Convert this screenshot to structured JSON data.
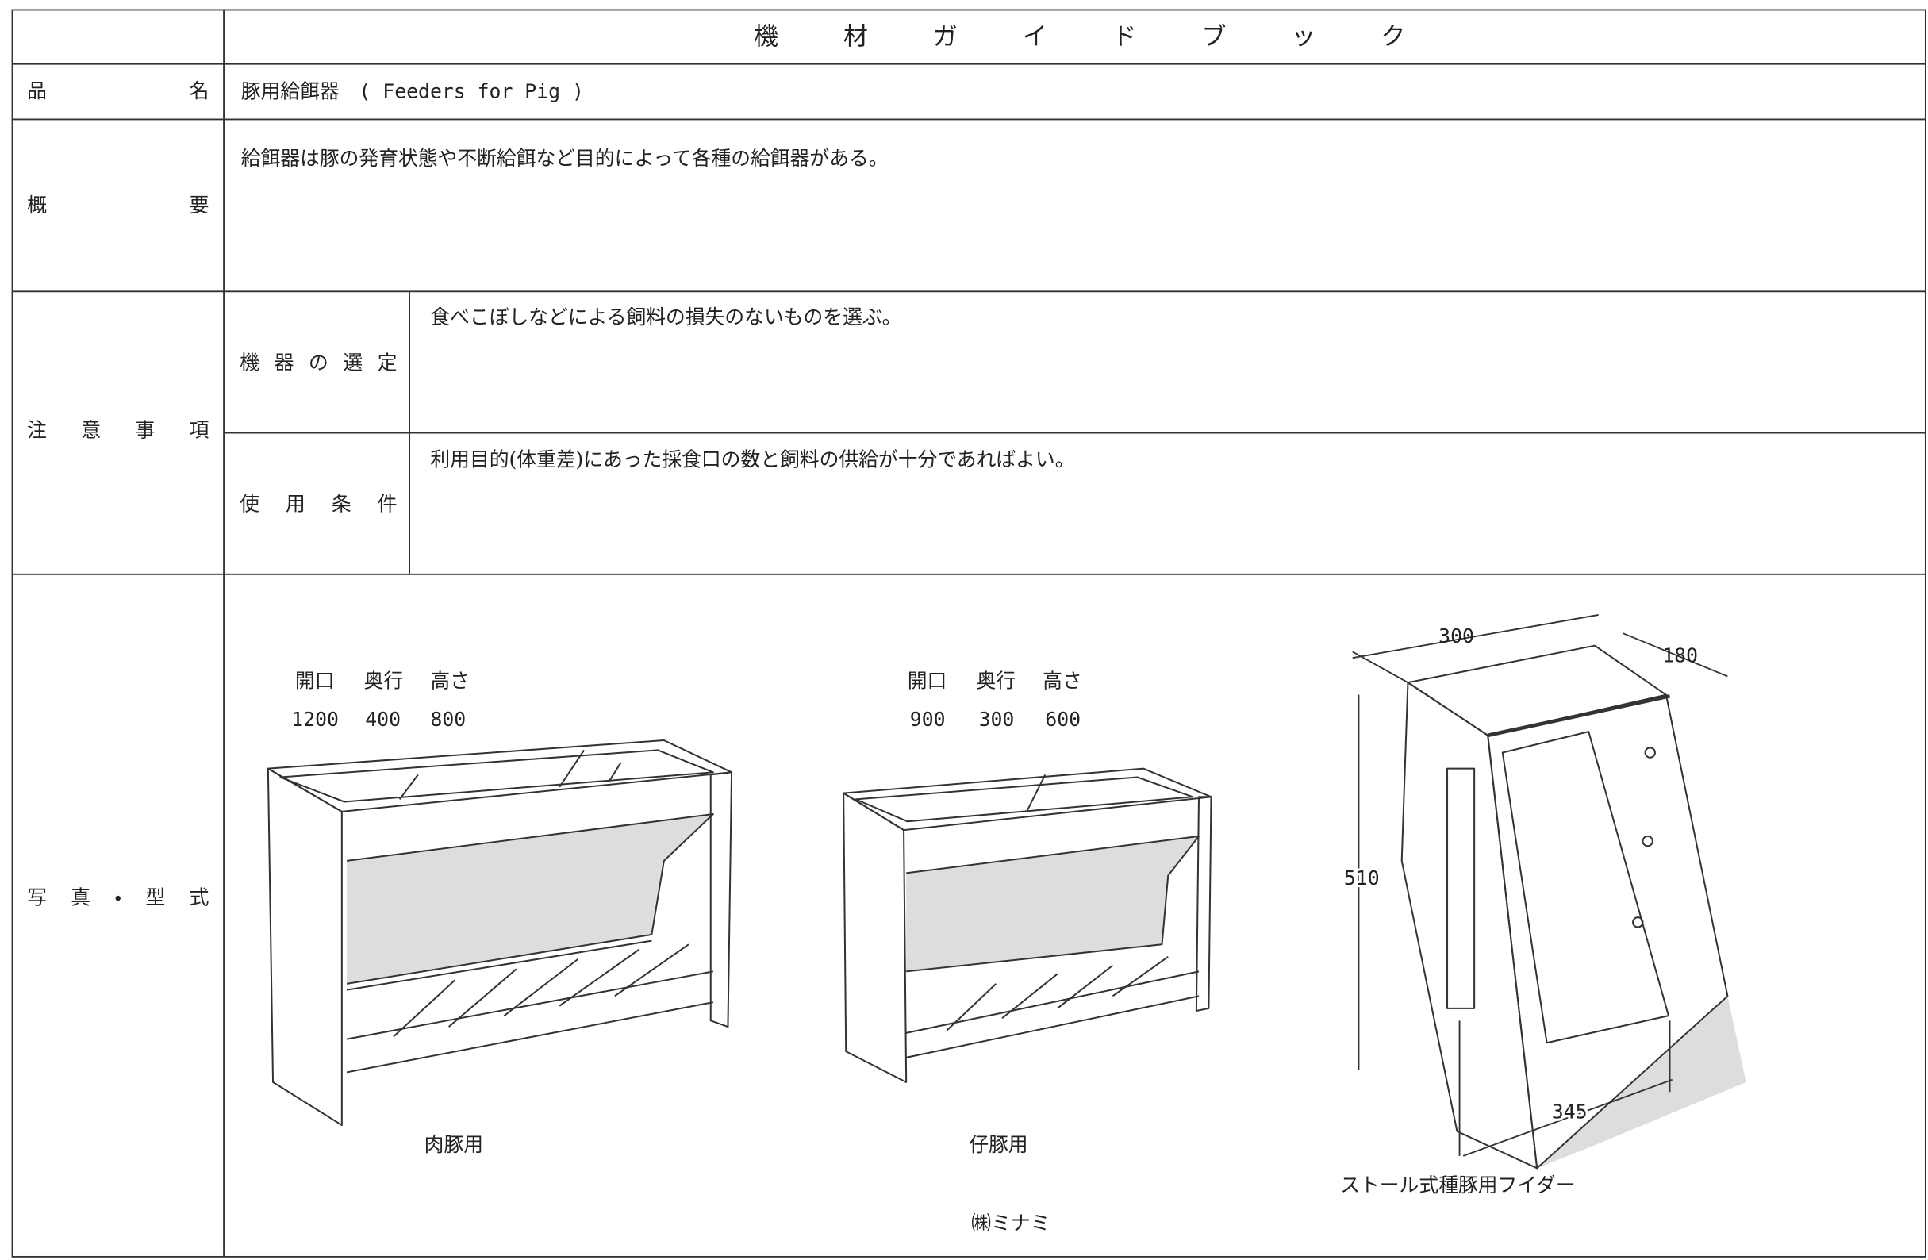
{
  "header": {
    "title": "機材ガイドブック"
  },
  "product": {
    "label": "品名",
    "value": "豚用給餌器　( Feeders for Pig )"
  },
  "overview": {
    "label": "概要",
    "text": "給餌器は豚の発育状態や不断給餌など目的によって各種の給餌器がある。"
  },
  "cautions": {
    "label": "注意事項",
    "items": [
      {
        "label": "機器の選定",
        "text": "食べこぼしなどによる飼料の損失のないものを選ぶ。"
      },
      {
        "label": "使用条件",
        "text": "利用目的(体重差)にあった採食口の数と飼料の供給が十分であればよい。"
      }
    ]
  },
  "photos": {
    "label": "写真・型式",
    "feeders": [
      {
        "dim_labels": [
          "開口",
          "奥行",
          "高さ"
        ],
        "dims": [
          1200,
          400,
          800
        ],
        "caption": "肉豚用"
      },
      {
        "dim_labels": [
          "開口",
          "奥行",
          "高さ"
        ],
        "dims": [
          900,
          300,
          600
        ],
        "caption": "仔豚用"
      },
      {
        "dims": [
          300,
          180,
          510,
          345
        ],
        "caption": "ストール式種豚用フイダー"
      }
    ],
    "maker": "㈱ミナミ"
  }
}
